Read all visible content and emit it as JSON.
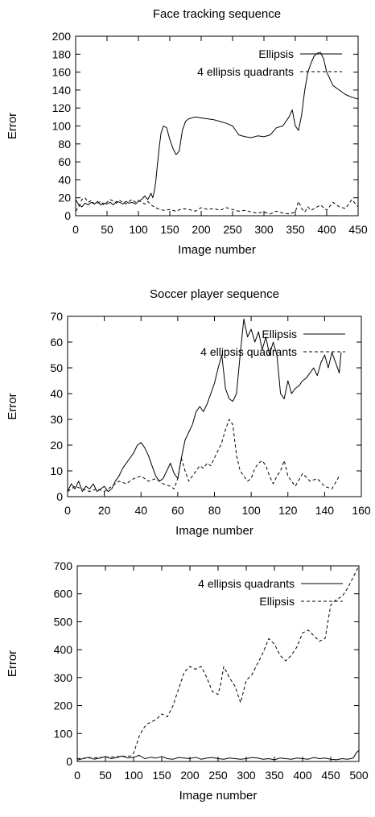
{
  "chart_data": [
    {
      "type": "line",
      "title": "Face tracking sequence",
      "xlabel": "Image number",
      "ylabel": "Error",
      "xlim": [
        0,
        450
      ],
      "ylim": [
        0,
        200
      ],
      "xticks": [
        "0",
        "50",
        "100",
        "150",
        "200",
        "250",
        "300",
        "350",
        "400",
        "450"
      ],
      "yticks": [
        "0",
        "20",
        "40",
        "60",
        "80",
        "100",
        "120",
        "140",
        "160",
        "180",
        "200"
      ],
      "legend_position": "top-right",
      "series": [
        {
          "name": "Ellipsis",
          "style": "solid",
          "x": [
            0,
            5,
            10,
            15,
            20,
            25,
            30,
            35,
            40,
            45,
            50,
            55,
            60,
            65,
            70,
            75,
            80,
            85,
            90,
            95,
            100,
            105,
            110,
            115,
            120,
            123,
            126,
            128,
            130,
            133,
            136,
            140,
            145,
            150,
            155,
            160,
            165,
            170,
            175,
            180,
            190,
            200,
            210,
            220,
            230,
            240,
            250,
            260,
            270,
            280,
            290,
            300,
            310,
            320,
            330,
            340,
            345,
            350,
            355,
            360,
            365,
            370,
            375,
            380,
            385,
            390,
            395,
            400,
            410,
            420,
            430,
            440,
            450
          ],
          "y": [
            18,
            12,
            10,
            14,
            12,
            15,
            13,
            16,
            12,
            14,
            13,
            15,
            12,
            16,
            15,
            13,
            16,
            14,
            15,
            13,
            16,
            18,
            22,
            18,
            25,
            20,
            30,
            40,
            55,
            75,
            92,
            100,
            98,
            85,
            75,
            68,
            72,
            95,
            105,
            108,
            110,
            109,
            108,
            107,
            105,
            103,
            100,
            90,
            88,
            87,
            89,
            88,
            90,
            98,
            100,
            110,
            118,
            100,
            95,
            112,
            140,
            160,
            170,
            178,
            181,
            182,
            175,
            160,
            145,
            140,
            135,
            132,
            130
          ]
        },
        {
          "name": "4 ellipsis quadrants",
          "style": "dashed",
          "x": [
            0,
            5,
            10,
            15,
            20,
            25,
            30,
            35,
            40,
            45,
            50,
            55,
            60,
            65,
            70,
            75,
            80,
            85,
            90,
            95,
            100,
            105,
            110,
            115,
            120,
            125,
            130,
            140,
            150,
            160,
            170,
            180,
            190,
            200,
            210,
            220,
            230,
            240,
            250,
            260,
            270,
            280,
            290,
            300,
            310,
            320,
            330,
            340,
            350,
            355,
            360,
            365,
            370,
            375,
            380,
            390,
            400,
            410,
            420,
            430,
            440,
            450
          ],
          "y": [
            5,
            10,
            18,
            20,
            15,
            17,
            13,
            14,
            16,
            12,
            15,
            18,
            16,
            14,
            17,
            15,
            13,
            16,
            18,
            15,
            17,
            15,
            13,
            16,
            12,
            10,
            8,
            6,
            7,
            5,
            8,
            7,
            5,
            9,
            7,
            8,
            6,
            9,
            7,
            5,
            6,
            4,
            3,
            4,
            2,
            5,
            3,
            2,
            4,
            16,
            8,
            4,
            10,
            6,
            8,
            12,
            6,
            15,
            10,
            8,
            18,
            10
          ]
        }
      ]
    },
    {
      "type": "line",
      "title": "Soccer player sequence",
      "xlabel": "Image number",
      "ylabel": "Error",
      "xlim": [
        0,
        160
      ],
      "ylim": [
        0,
        70
      ],
      "xticks": [
        "0",
        "20",
        "40",
        "60",
        "80",
        "100",
        "120",
        "140",
        "160"
      ],
      "yticks": [
        "0",
        "10",
        "20",
        "30",
        "40",
        "50",
        "60",
        "70"
      ],
      "legend_position": "top-right",
      "series": [
        {
          "name": "Ellipsis",
          "style": "solid",
          "x": [
            0,
            2,
            4,
            6,
            8,
            10,
            12,
            14,
            16,
            18,
            20,
            22,
            24,
            26,
            28,
            30,
            32,
            34,
            36,
            38,
            40,
            42,
            44,
            46,
            48,
            50,
            52,
            54,
            56,
            58,
            60,
            62,
            64,
            66,
            68,
            70,
            72,
            74,
            76,
            78,
            80,
            82,
            84,
            86,
            88,
            90,
            92,
            94,
            96,
            98,
            100,
            102,
            104,
            106,
            108,
            110,
            112,
            114,
            116,
            118,
            120,
            122,
            124,
            126,
            128,
            130,
            132,
            134,
            136,
            138,
            140,
            142,
            144,
            146,
            148,
            149
          ],
          "y": [
            2,
            5,
            3,
            6,
            2,
            4,
            3,
            5,
            2,
            3,
            4,
            2,
            3,
            6,
            8,
            11,
            13,
            15,
            17,
            20,
            21,
            19,
            16,
            12,
            8,
            6,
            7,
            10,
            13,
            9,
            7,
            15,
            22,
            25,
            28,
            33,
            35,
            33,
            36,
            40,
            44,
            50,
            55,
            42,
            38,
            37,
            40,
            55,
            69,
            62,
            65,
            60,
            64,
            57,
            62,
            55,
            60,
            55,
            40,
            38,
            45,
            40,
            42,
            43,
            45,
            46,
            48,
            50,
            47,
            52,
            55,
            50,
            56,
            52,
            48,
            56
          ]
        },
        {
          "name": "4 ellipsis quadrants",
          "style": "dashed",
          "x": [
            0,
            4,
            8,
            12,
            16,
            20,
            24,
            28,
            32,
            36,
            40,
            44,
            48,
            52,
            56,
            58,
            60,
            62,
            64,
            66,
            68,
            70,
            72,
            74,
            76,
            78,
            80,
            82,
            84,
            86,
            88,
            90,
            92,
            94,
            96,
            98,
            100,
            102,
            104,
            106,
            108,
            110,
            112,
            114,
            116,
            118,
            120,
            124,
            128,
            132,
            136,
            140,
            144,
            148
          ],
          "y": [
            2,
            4,
            3,
            2,
            3,
            2,
            4,
            6,
            5,
            7,
            8,
            6,
            7,
            5,
            4,
            3,
            7,
            15,
            10,
            6,
            8,
            10,
            12,
            11,
            13,
            12,
            15,
            18,
            21,
            26,
            30,
            28,
            16,
            10,
            8,
            6,
            7,
            11,
            13,
            14,
            12,
            8,
            5,
            8,
            10,
            14,
            8,
            4,
            9,
            6,
            7,
            4,
            3,
            8
          ]
        }
      ]
    },
    {
      "type": "line",
      "title": "",
      "xlabel": "Image number",
      "ylabel": "Error",
      "xlim": [
        0,
        500
      ],
      "ylim": [
        0,
        700
      ],
      "xticks": [
        "0",
        "50",
        "100",
        "150",
        "200",
        "250",
        "300",
        "350",
        "400",
        "450",
        "500"
      ],
      "yticks": [
        "0",
        "100",
        "200",
        "300",
        "400",
        "500",
        "600",
        "700"
      ],
      "legend_position": "top-right",
      "series": [
        {
          "name": "4 ellipsis quadrants",
          "style": "solid",
          "x": [
            0,
            10,
            20,
            30,
            40,
            50,
            60,
            70,
            80,
            90,
            100,
            110,
            120,
            130,
            140,
            150,
            160,
            170,
            180,
            190,
            200,
            210,
            220,
            230,
            240,
            250,
            260,
            270,
            280,
            290,
            300,
            310,
            320,
            330,
            340,
            350,
            360,
            370,
            380,
            390,
            400,
            410,
            420,
            430,
            440,
            450,
            460,
            470,
            480,
            490,
            495,
            500
          ],
          "y": [
            5,
            10,
            15,
            8,
            12,
            18,
            10,
            14,
            20,
            12,
            15,
            22,
            10,
            15,
            12,
            18,
            10,
            8,
            14,
            12,
            10,
            15,
            8,
            12,
            14,
            10,
            8,
            12,
            10,
            8,
            10,
            14,
            12,
            8,
            10,
            6,
            12,
            10,
            8,
            12,
            10,
            8,
            14,
            10,
            12,
            8,
            6,
            10,
            8,
            12,
            30,
            40
          ]
        },
        {
          "name": "Ellipsis",
          "style": "dashed",
          "x": [
            0,
            20,
            40,
            60,
            80,
            95,
            100,
            105,
            110,
            115,
            120,
            125,
            130,
            140,
            150,
            160,
            170,
            180,
            190,
            200,
            210,
            220,
            230,
            240,
            250,
            255,
            260,
            265,
            270,
            280,
            290,
            300,
            310,
            320,
            330,
            340,
            350,
            360,
            370,
            380,
            390,
            400,
            410,
            420,
            430,
            440,
            450,
            460,
            470,
            480,
            490,
            500
          ],
          "y": [
            10,
            12,
            14,
            16,
            18,
            20,
            30,
            60,
            90,
            110,
            125,
            135,
            140,
            150,
            170,
            160,
            200,
            260,
            320,
            340,
            330,
            340,
            300,
            250,
            240,
            280,
            340,
            320,
            300,
            270,
            210,
            290,
            310,
            350,
            390,
            440,
            420,
            380,
            360,
            380,
            410,
            460,
            470,
            450,
            430,
            440,
            560,
            580,
            590,
            620,
            660,
            700
          ]
        }
      ]
    }
  ]
}
